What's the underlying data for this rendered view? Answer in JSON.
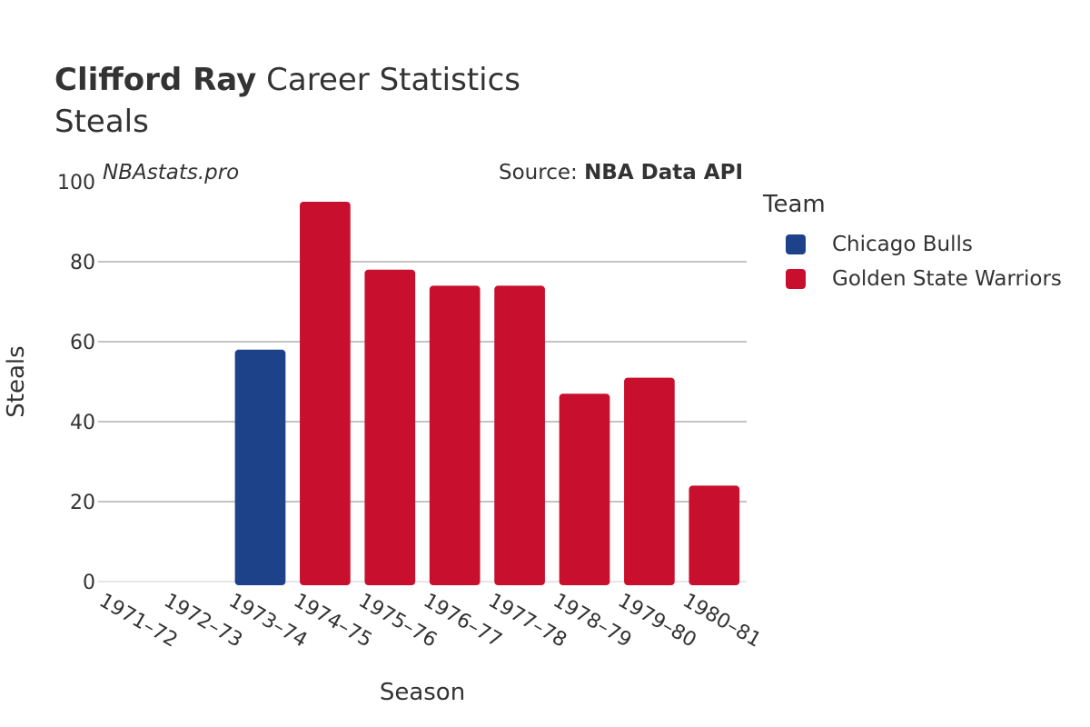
{
  "header": {
    "player": "Clifford Ray",
    "title_rest": " Career Statistics",
    "subtitle": "Steals",
    "watermark": "NBAstats.pro",
    "source_prefix": "Source: ",
    "source_name": "NBA Data API"
  },
  "legend": {
    "title": "Team",
    "items": [
      {
        "label": "Chicago Bulls",
        "color": "#1d428a"
      },
      {
        "label": "Golden State Warriors",
        "color": "#c8102e"
      }
    ]
  },
  "chart_data": {
    "type": "bar",
    "xlabel": "Season",
    "ylabel": "Steals",
    "ylim": [
      0,
      100
    ],
    "yticks": [
      0,
      20,
      40,
      60,
      80,
      100
    ],
    "grid": true,
    "legend_position": "right",
    "categories": [
      "1971–72",
      "1972–73",
      "1973–74",
      "1974–75",
      "1975–76",
      "1976–77",
      "1977–78",
      "1978–79",
      "1979–80",
      "1980–81"
    ],
    "bars": [
      {
        "category": "1971–72",
        "value": 0,
        "team": "Chicago Bulls"
      },
      {
        "category": "1972–73",
        "value": 0,
        "team": "Chicago Bulls"
      },
      {
        "category": "1973–74",
        "value": 58,
        "team": "Chicago Bulls"
      },
      {
        "category": "1974–75",
        "value": 95,
        "team": "Golden State Warriors"
      },
      {
        "category": "1975–76",
        "value": 78,
        "team": "Golden State Warriors"
      },
      {
        "category": "1976–77",
        "value": 74,
        "team": "Golden State Warriors"
      },
      {
        "category": "1977–78",
        "value": 74,
        "team": "Golden State Warriors"
      },
      {
        "category": "1978–79",
        "value": 47,
        "team": "Golden State Warriors"
      },
      {
        "category": "1979–80",
        "value": 51,
        "team": "Golden State Warriors"
      },
      {
        "category": "1980–81",
        "value": 24,
        "team": "Golden State Warriors"
      }
    ]
  }
}
